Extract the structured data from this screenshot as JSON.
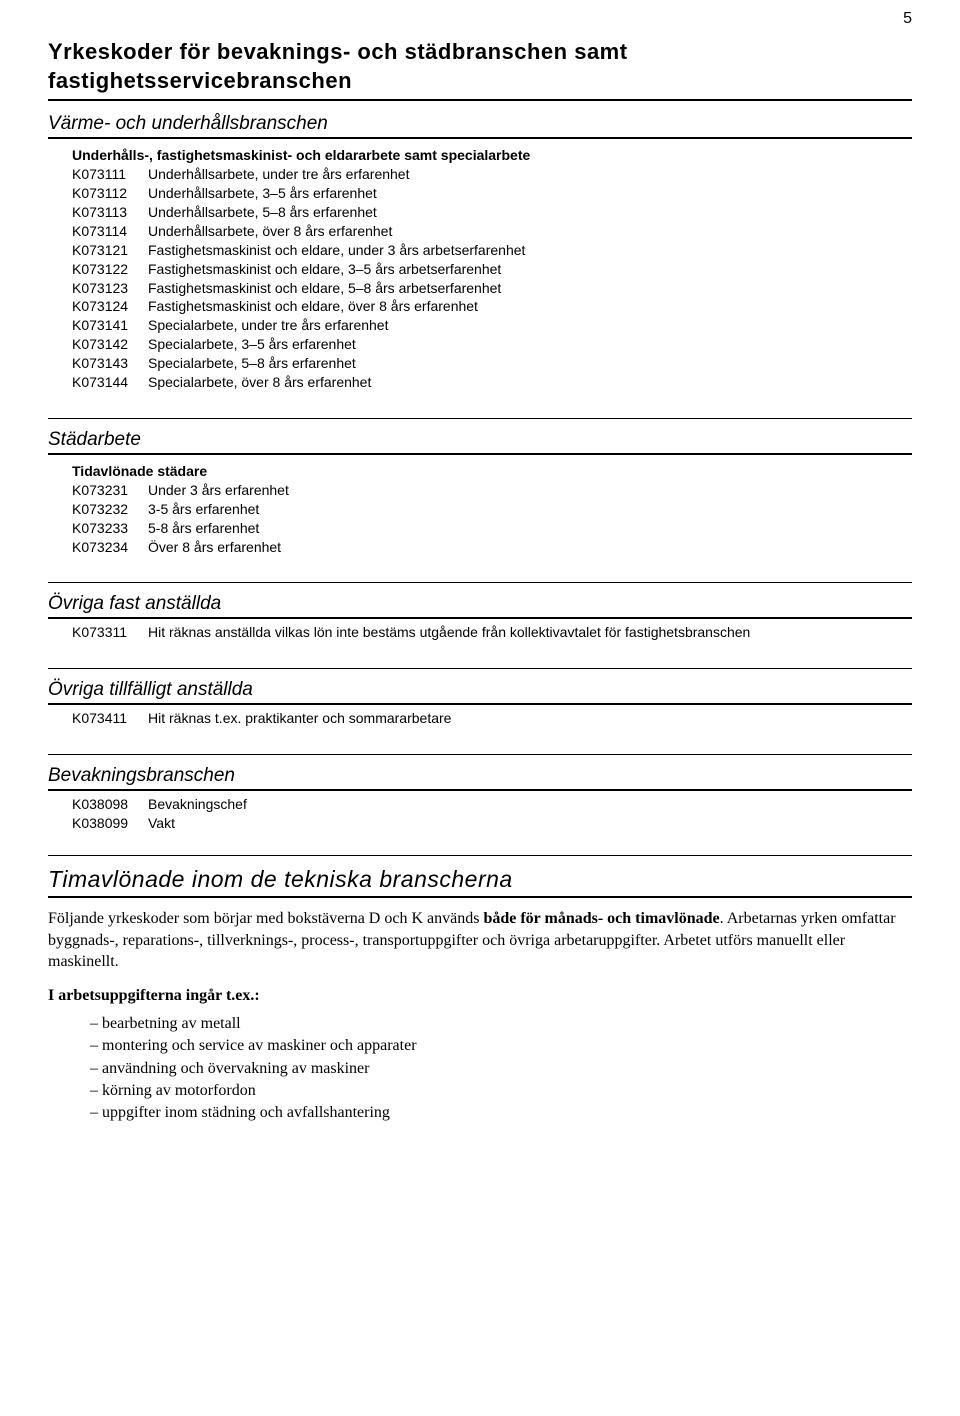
{
  "page_number": "5",
  "main_title": "Yrkeskoder för bevaknings- och städbranschen samt fastighetsservicebranschen",
  "sections": [
    {
      "heading": "Värme- och underhållsbranschen",
      "subheading": "Underhålls-, fastighetsmaskinist- och eldararbete samt specialarbete",
      "rows": [
        {
          "code": "K073111",
          "text": "Underhållsarbete, under tre års erfarenhet"
        },
        {
          "code": "K073112",
          "text": "Underhållsarbete, 3–5 års erfarenhet"
        },
        {
          "code": "K073113",
          "text": "Underhållsarbete, 5–8 års erfarenhet"
        },
        {
          "code": "K073114",
          "text": "Underhållsarbete, över 8 års erfarenhet"
        },
        {
          "code": "K073121",
          "text": "Fastighetsmaskinist och eldare, under 3 års arbetserfarenhet"
        },
        {
          "code": "K073122",
          "text": "Fastighetsmaskinist och eldare, 3–5 års arbetserfarenhet"
        },
        {
          "code": "K073123",
          "text": "Fastighetsmaskinist och eldare, 5–8 års arbetserfarenhet"
        },
        {
          "code": "K073124",
          "text": "Fastighetsmaskinist och eldare, över 8 års erfarenhet"
        },
        {
          "code": "K073141",
          "text": "Specialarbete, under tre års erfarenhet"
        },
        {
          "code": "K073142",
          "text": "Specialarbete, 3–5 års erfarenhet"
        },
        {
          "code": "K073143",
          "text": "Specialarbete, 5–8 års erfarenhet"
        },
        {
          "code": "K073144",
          "text": "Specialarbete, över 8 års erfarenhet"
        }
      ]
    },
    {
      "heading": "Städarbete",
      "subheading": "Tidavlönade städare",
      "rows": [
        {
          "code": "K073231",
          "text": "Under 3 års erfarenhet"
        },
        {
          "code": "K073232",
          "text": "3-5 års erfarenhet"
        },
        {
          "code": "K073233",
          "text": "5-8 års erfarenhet"
        },
        {
          "code": "K073234",
          "text": "Över 8 års erfarenhet"
        }
      ]
    },
    {
      "heading": "Övriga fast anställda",
      "rows": [
        {
          "code": "K073311",
          "text": "Hit räknas anställda vilkas lön inte bestäms utgående från kollektivavtalet för fastighetsbranschen"
        }
      ]
    },
    {
      "heading": "Övriga tillfälligt anställda",
      "rows": [
        {
          "code": "K073411",
          "text": "Hit räknas t.ex. praktikanter och sommararbetare"
        }
      ]
    },
    {
      "heading": "Bevakningsbranschen",
      "rows": [
        {
          "code": "K038098",
          "text": "Bevakningschef"
        },
        {
          "code": "K038099",
          "text": "Vakt"
        }
      ]
    }
  ],
  "big_heading": "Timavlönade inom de tekniska branscherna",
  "paragraph_pre": "Följande yrkeskoder som börjar med bokstäverna D och K används ",
  "paragraph_bold": "både för månads- och timavlönade",
  "paragraph_post": ". Arbetarnas yrken omfattar byggnads-, reparations-, tillverknings-, process-, transportuppgifter och övriga arbetaruppgifter. Arbetet utförs manuellt eller maskinellt.",
  "bold_line": "I arbetsuppgifterna ingår t.ex.:",
  "dash_items": [
    "bearbetning av metall",
    "montering och service av maskiner och apparater",
    "användning och övervakning av maskiner",
    "körning av motorfordon",
    "uppgifter inom städning och avfallshantering"
  ]
}
